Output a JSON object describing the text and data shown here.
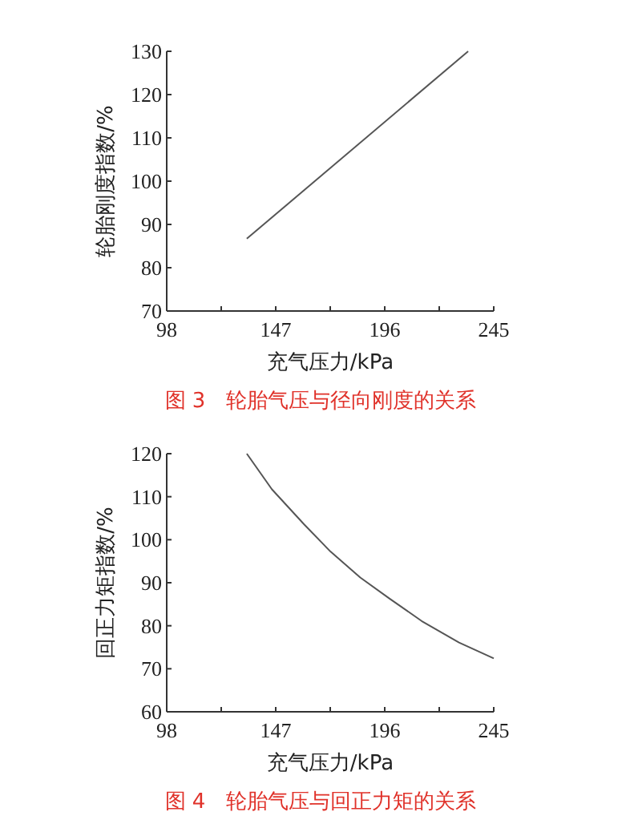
{
  "chart_data": [
    {
      "type": "line",
      "title": "图 3　轮胎气压与径向刚度的关系",
      "xlabel": "充气压力/kPa",
      "ylabel": "轮胎刚度指数/%",
      "series": [
        {
          "color": "#555555",
          "x": [
            134,
            233.5
          ],
          "values": [
            86.7,
            130
          ]
        }
      ],
      "xlim": [
        98,
        245
      ],
      "ylim": [
        70,
        130
      ],
      "xticks": [
        98,
        {
          "value": 122.5,
          "label": null
        },
        147,
        {
          "value": 171.5,
          "label": null
        },
        196,
        {
          "value": 220.5,
          "label": null
        },
        245
      ],
      "yticks": [
        70,
        80,
        90,
        100,
        110,
        120,
        130
      ],
      "grid": false,
      "line_style": "solid"
    },
    {
      "type": "line",
      "title": "图 4　轮胎气压与回正力矩的关系",
      "xlabel": "充气压力/kPa",
      "ylabel": "回正力矩指数/%",
      "series": [
        {
          "color": "#555555",
          "x": [
            134,
            145.3,
            159.7,
            171.7,
            185,
            198.2,
            212.6,
            229.4,
            245
          ],
          "values": [
            120,
            111.7,
            103.6,
            97.2,
            91.2,
            86.3,
            81.1,
            76.1,
            72.4
          ]
        }
      ],
      "xlim": [
        98,
        245
      ],
      "ylim": [
        60,
        120
      ],
      "xticks": [
        98,
        {
          "value": 122.5,
          "label": null
        },
        147,
        {
          "value": 171.5,
          "label": null
        },
        196,
        {
          "value": 220.5,
          "label": null
        },
        245
      ],
      "yticks": [
        60,
        70,
        80,
        90,
        100,
        110,
        120
      ],
      "grid": false,
      "line_style": "solid"
    }
  ]
}
